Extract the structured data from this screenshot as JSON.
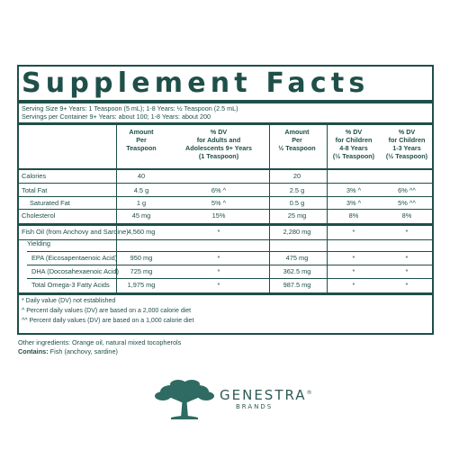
{
  "title": "Supplement Facts",
  "serving": [
    "Serving Size 9+ Years: 1 Teaspoon (5 mL); 1-8 Years: ½ Teaspoon (2.5 mL)",
    "Servings per Container 9+ Years: about 100; 1-8 Years: about 200"
  ],
  "headers": [
    "Amount\nPer\nTeaspoon",
    "% DV\nfor Adults and\nAdolescents 9+ Years\n(1 Teaspoon)",
    "Amount\nPer\n½ Teaspoon",
    "% DV\nfor Children\n4-8 Years\n(½ Teaspoon)",
    "% DV\nfor Children\n1-3 Years\n(½ Teaspoon)"
  ],
  "rows_top": [
    {
      "label": "Calories",
      "c1": "40",
      "c2": "",
      "c3": "20",
      "c4": "",
      "c5": ""
    },
    {
      "label": "Total Fat",
      "c1": "4.5 g",
      "c2": "6% ^",
      "c3": "2.5 g",
      "c4": "3% ^",
      "c5": "6% ^^"
    },
    {
      "label": "Saturated Fat",
      "c1": "1 g",
      "c2": "5% ^",
      "c3": "0.5 g",
      "c4": "3% ^",
      "c5": "5% ^^"
    },
    {
      "label": "Cholesterol",
      "c1": "45 mg",
      "c2": "15%",
      "c3": "25 mg",
      "c4": "8%",
      "c5": "8%"
    }
  ],
  "fish_oil": {
    "label": "Fish Oil (from Anchovy and Sardine)",
    "c1": "4,560 mg",
    "c2": "*",
    "c3": "2,280 mg",
    "c4": "*",
    "c5": "*"
  },
  "yielding": "Yielding",
  "rows_yield": [
    {
      "label": "EPA (Eicosapentaenoic Acid)",
      "c1": "950 mg",
      "c2": "*",
      "c3": "475 mg",
      "c4": "*",
      "c5": "*"
    },
    {
      "label": "DHA (Docosahexaenoic Acid)",
      "c1": "725 mg",
      "c2": "*",
      "c3": "362.5 mg",
      "c4": "*",
      "c5": "*"
    },
    {
      "label": "Total Omega-3 Fatty Acids",
      "c1": "1,975 mg",
      "c2": "*",
      "c3": "987.5 mg",
      "c4": "*",
      "c5": "*"
    }
  ],
  "footnotes": [
    "* Daily value (DV) not established",
    "^ Percent daily values (DV) are based on a 2,000 calorie diet",
    "^^ Percent daily values (DV) are based on a 1,000 calorie diet"
  ],
  "other_ingredients": "Other ingredients: Orange oil, natural mixed tocopherols",
  "contains_label": "Contains:",
  "contains_value": " Fish (anchovy, sardine)",
  "brand": {
    "name": "GENESTRA",
    "sub": "BRANDS",
    "reg": "®"
  },
  "colors": {
    "ink": "#1f4f49",
    "tree": "#2f6b62"
  }
}
